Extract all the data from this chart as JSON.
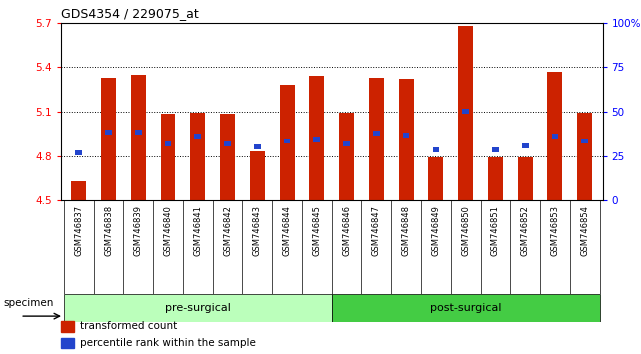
{
  "title": "GDS4354 / 229075_at",
  "categories": [
    "GSM746837",
    "GSM746838",
    "GSM746839",
    "GSM746840",
    "GSM746841",
    "GSM746842",
    "GSM746843",
    "GSM746844",
    "GSM746845",
    "GSM746846",
    "GSM746847",
    "GSM746848",
    "GSM746849",
    "GSM746850",
    "GSM746851",
    "GSM746852",
    "GSM746853",
    "GSM746854"
  ],
  "red_values": [
    4.63,
    5.33,
    5.35,
    5.08,
    5.09,
    5.08,
    4.83,
    5.28,
    5.34,
    5.09,
    5.33,
    5.32,
    4.79,
    5.68,
    4.79,
    4.79,
    5.37,
    5.09
  ],
  "blue_values": [
    4.82,
    4.96,
    4.96,
    4.88,
    4.93,
    4.88,
    4.86,
    4.9,
    4.91,
    4.88,
    4.95,
    4.94,
    4.84,
    5.1,
    4.84,
    4.87,
    4.93,
    4.9
  ],
  "ylim_left": [
    4.5,
    5.7
  ],
  "ylim_right": [
    0,
    100
  ],
  "yticks_left": [
    4.5,
    4.8,
    5.1,
    5.4,
    5.7
  ],
  "ytick_labels_left": [
    "4.5",
    "4.8",
    "5.1",
    "5.4",
    "5.7"
  ],
  "yticks_right": [
    0,
    25,
    50,
    75,
    100
  ],
  "ytick_labels_right": [
    "0",
    "25",
    "50",
    "75",
    "100%"
  ],
  "groups": [
    {
      "label": "pre-surgical",
      "start": 0,
      "end": 8,
      "color": "#bbffbb"
    },
    {
      "label": "post-surgical",
      "start": 9,
      "end": 17,
      "color": "#44cc44"
    }
  ],
  "bar_color": "#cc2200",
  "blue_color": "#2244cc",
  "bar_width": 0.5,
  "base_value": 4.5,
  "legend_items": [
    {
      "label": "transformed count",
      "color": "#cc2200"
    },
    {
      "label": "percentile rank within the sample",
      "color": "#2244cc"
    }
  ],
  "plot_bg_color": "#ffffff",
  "tick_area_color": "#cccccc",
  "grid_color": "#000000",
  "spine_color": "#000000"
}
